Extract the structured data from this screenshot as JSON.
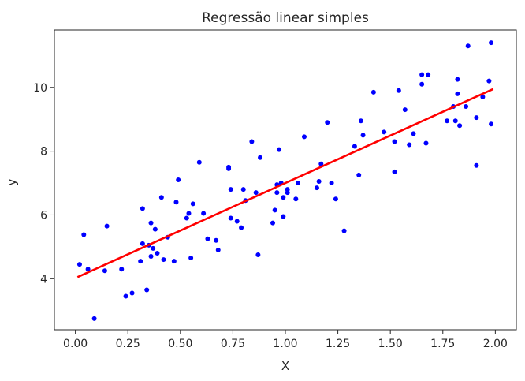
{
  "chart_data": {
    "type": "scatter",
    "title": "Regressão linear simples",
    "xlabel": "X",
    "ylabel": "y",
    "xlim": [
      -0.1,
      2.1
    ],
    "ylim": [
      2.4,
      11.8
    ],
    "x_ticks": [
      0.0,
      0.25,
      0.5,
      0.75,
      1.0,
      1.25,
      1.5,
      1.75,
      2.0
    ],
    "x_tick_labels": [
      "0.00",
      "0.25",
      "0.50",
      "0.75",
      "1.00",
      "1.25",
      "1.50",
      "1.75",
      "2.00"
    ],
    "y_ticks": [
      4,
      6,
      8,
      10
    ],
    "y_tick_labels": [
      "4",
      "6",
      "8",
      "10"
    ],
    "grid": false,
    "legend": "none",
    "colors": {
      "points": "#0000ff",
      "line": "#ff0000",
      "axes": "#262626"
    },
    "series": [
      {
        "kind": "points",
        "color": "#0000ff",
        "points": [
          [
            0.02,
            4.45
          ],
          [
            0.04,
            5.38
          ],
          [
            0.06,
            4.3
          ],
          [
            0.09,
            2.75
          ],
          [
            0.14,
            4.25
          ],
          [
            0.15,
            5.65
          ],
          [
            0.22,
            4.3
          ],
          [
            0.24,
            3.45
          ],
          [
            0.27,
            3.55
          ],
          [
            0.31,
            4.55
          ],
          [
            0.32,
            6.2
          ],
          [
            0.32,
            5.1
          ],
          [
            0.34,
            3.65
          ],
          [
            0.35,
            5.05
          ],
          [
            0.36,
            5.75
          ],
          [
            0.36,
            4.7
          ],
          [
            0.37,
            4.95
          ],
          [
            0.38,
            5.55
          ],
          [
            0.39,
            4.8
          ],
          [
            0.41,
            6.55
          ],
          [
            0.42,
            4.6
          ],
          [
            0.44,
            5.3
          ],
          [
            0.47,
            4.55
          ],
          [
            0.48,
            6.4
          ],
          [
            0.49,
            7.1
          ],
          [
            0.53,
            5.9
          ],
          [
            0.54,
            6.05
          ],
          [
            0.55,
            4.65
          ],
          [
            0.56,
            6.35
          ],
          [
            0.59,
            7.65
          ],
          [
            0.61,
            6.05
          ],
          [
            0.63,
            5.25
          ],
          [
            0.67,
            5.2
          ],
          [
            0.68,
            4.9
          ],
          [
            0.73,
            7.45
          ],
          [
            0.73,
            7.5
          ],
          [
            0.74,
            6.8
          ],
          [
            0.74,
            5.9
          ],
          [
            0.77,
            5.8
          ],
          [
            0.79,
            5.6
          ],
          [
            0.8,
            6.8
          ],
          [
            0.81,
            6.45
          ],
          [
            0.84,
            8.3
          ],
          [
            0.86,
            6.7
          ],
          [
            0.87,
            4.75
          ],
          [
            0.88,
            7.8
          ],
          [
            0.94,
            5.75
          ],
          [
            0.95,
            6.15
          ],
          [
            0.96,
            6.7
          ],
          [
            0.96,
            6.95
          ],
          [
            0.97,
            8.05
          ],
          [
            0.98,
            7.0
          ],
          [
            0.99,
            5.95
          ],
          [
            0.99,
            6.55
          ],
          [
            1.01,
            6.7
          ],
          [
            1.01,
            6.8
          ],
          [
            1.05,
            6.5
          ],
          [
            1.06,
            7.0
          ],
          [
            1.09,
            8.45
          ],
          [
            1.15,
            6.85
          ],
          [
            1.16,
            7.05
          ],
          [
            1.17,
            7.6
          ],
          [
            1.2,
            8.9
          ],
          [
            1.22,
            7.0
          ],
          [
            1.24,
            6.5
          ],
          [
            1.28,
            5.5
          ],
          [
            1.33,
            8.15
          ],
          [
            1.35,
            7.25
          ],
          [
            1.36,
            8.95
          ],
          [
            1.37,
            8.5
          ],
          [
            1.42,
            9.85
          ],
          [
            1.47,
            8.6
          ],
          [
            1.52,
            8.3
          ],
          [
            1.52,
            7.35
          ],
          [
            1.54,
            9.9
          ],
          [
            1.57,
            9.3
          ],
          [
            1.59,
            8.2
          ],
          [
            1.61,
            8.55
          ],
          [
            1.65,
            10.4
          ],
          [
            1.65,
            10.1
          ],
          [
            1.67,
            8.25
          ],
          [
            1.68,
            10.4
          ],
          [
            1.77,
            8.95
          ],
          [
            1.8,
            9.4
          ],
          [
            1.81,
            8.95
          ],
          [
            1.82,
            10.25
          ],
          [
            1.82,
            9.8
          ],
          [
            1.83,
            8.8
          ],
          [
            1.86,
            9.4
          ],
          [
            1.87,
            11.3
          ],
          [
            1.91,
            7.55
          ],
          [
            1.91,
            9.05
          ],
          [
            1.94,
            9.7
          ],
          [
            1.97,
            10.2
          ],
          [
            1.98,
            8.85
          ],
          [
            1.98,
            11.4
          ]
        ]
      },
      {
        "kind": "line",
        "color": "#ff0000",
        "x": [
          0.01,
          1.99
        ],
        "y": [
          4.05,
          9.95
        ]
      }
    ]
  }
}
